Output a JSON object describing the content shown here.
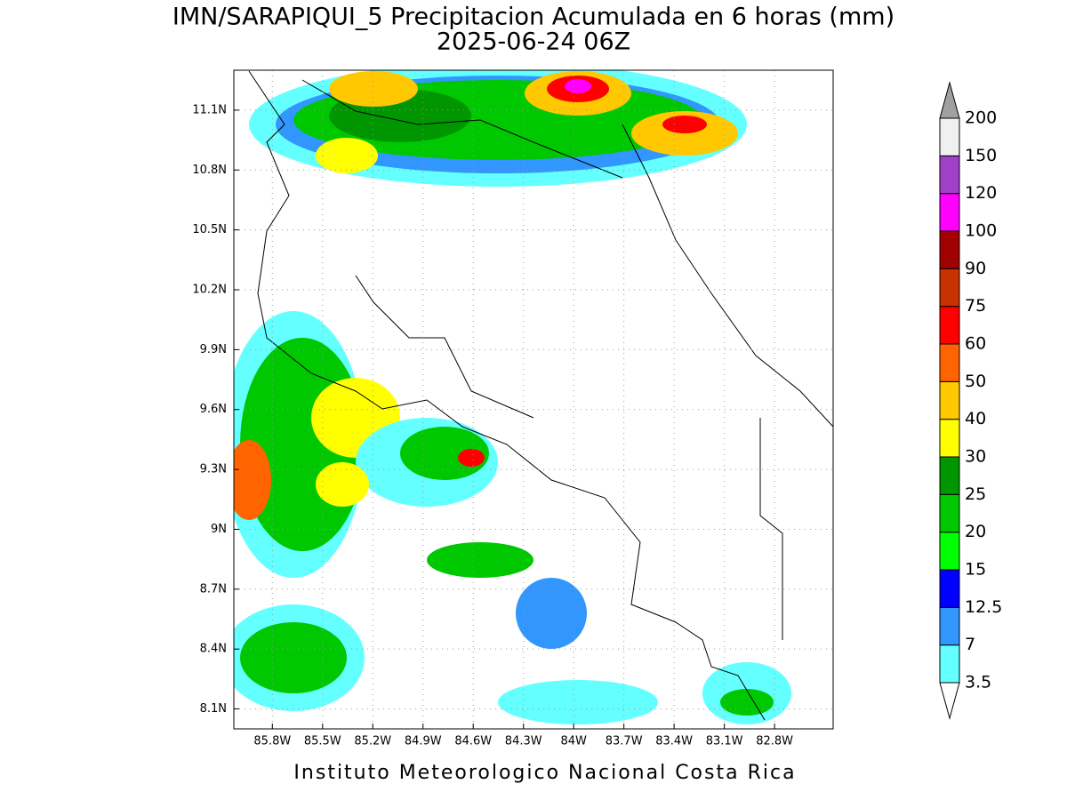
{
  "map": {
    "title": "IMN/SARAPIQUI_5 Precipitacion Acumulada en 6 horas (mm)",
    "subtitle": "2025-06-24 06Z",
    "footer": "Instituto Meteorologico Nacional Costa Rica",
    "xlim": [
      -86.03,
      -82.45
    ],
    "ylim": [
      8.0,
      11.3
    ],
    "xticks": [
      {
        "value": -85.8,
        "label": "85.8W"
      },
      {
        "value": -85.5,
        "label": "85.5W"
      },
      {
        "value": -85.2,
        "label": "85.2W"
      },
      {
        "value": -84.9,
        "label": "84.9W"
      },
      {
        "value": -84.6,
        "label": "84.6W"
      },
      {
        "value": -84.3,
        "label": "84.3W"
      },
      {
        "value": -84,
        "label": "84W"
      },
      {
        "value": -83.7,
        "label": "83.7W"
      },
      {
        "value": -83.4,
        "label": "83.4W"
      },
      {
        "value": -83.1,
        "label": "83.1W"
      },
      {
        "value": -82.8,
        "label": "82.8W"
      }
    ],
    "yticks": [
      {
        "value": 8.1,
        "label": "8.1N"
      },
      {
        "value": 8.4,
        "label": "8.4N"
      },
      {
        "value": 8.7,
        "label": "8.7N"
      },
      {
        "value": 9,
        "label": "9N"
      },
      {
        "value": 9.3,
        "label": "9.3N"
      },
      {
        "value": 9.6,
        "label": "9.6N"
      },
      {
        "value": 9.9,
        "label": "9.9N"
      },
      {
        "value": 10.2,
        "label": "10.2N"
      },
      {
        "value": 10.5,
        "label": "10.5N"
      },
      {
        "value": 10.8,
        "label": "10.8N"
      },
      {
        "value": 11.1,
        "label": "11.1N"
      }
    ],
    "grid": true,
    "colorbar": {
      "levels": [
        3.5,
        7,
        12.5,
        15,
        20,
        25,
        30,
        40,
        50,
        60,
        75,
        90,
        100,
        120,
        150,
        200
      ],
      "colors": [
        "#64ffff",
        "#3296ff",
        "#0000ff",
        "#00ff00",
        "#00c800",
        "#009600",
        "#ffff00",
        "#ffc800",
        "#ff6400",
        "#ff0000",
        "#c83200",
        "#a00000",
        "#ff00ff",
        "#a040c8",
        "#f0f0f0"
      ],
      "under_color": "#ffffff",
      "over_color": "#a0a0a0"
    }
  }
}
